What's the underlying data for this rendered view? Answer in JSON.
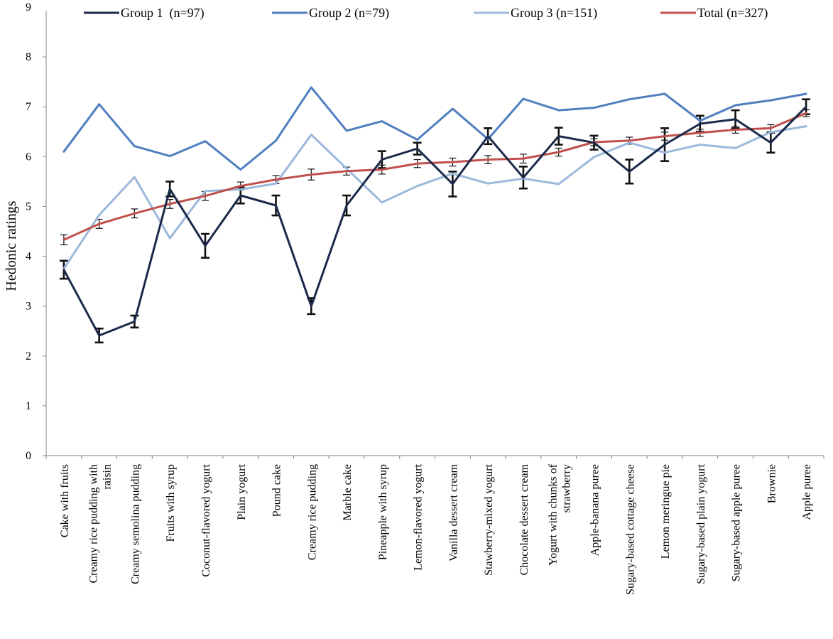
{
  "chart_data": {
    "type": "line",
    "title": "",
    "xlabel": "",
    "ylabel": "Hedonic ratings",
    "ylim": [
      0,
      9
    ],
    "yticks": [
      0,
      1,
      2,
      3,
      4,
      5,
      6,
      7,
      8,
      9
    ],
    "grid": false,
    "legend_position": "top",
    "categories": [
      "Cake with fruits",
      "Creamy rice pudding with raisin",
      "Creamy semolina pudding",
      "Fruits with syrup",
      "Coconut-flavored yogurt",
      "Plain yogurt",
      "Pound cake",
      "Creamy rice pudding",
      "Marble cake",
      "Pineapple with syrup",
      "Lemon-flavored yogurt",
      "Vanilla dessert cream",
      "Stawberry-mixed yogurt",
      "Chocolate dessert cream",
      "Yogurt with chunks of strawberry",
      "Apple-banana puree",
      "Sugary-based cottage cheese",
      "Lemon meringue pie",
      "Sugary-based plain yogurt",
      "Sugary-based apple puree",
      "Brownie",
      "Apple puree"
    ],
    "category_lines": [
      [
        "Cake with fruits"
      ],
      [
        "Creamy rice pudding with",
        "raisin"
      ],
      [
        "Creamy semolina pudding"
      ],
      [
        "Fruits with syrup"
      ],
      [
        "Coconut-flavored yogurt"
      ],
      [
        "Plain yogurt"
      ],
      [
        "Pound cake"
      ],
      [
        "Creamy rice pudding"
      ],
      [
        "Marble cake"
      ],
      [
        "Pineapple with syrup"
      ],
      [
        "Lemon-flavored yogurt"
      ],
      [
        "Vanilla dessert cream"
      ],
      [
        "Stawberry-mixed yogurt"
      ],
      [
        "Chocolate dessert cream"
      ],
      [
        "Yogurt with chunks of",
        "strawberry"
      ],
      [
        "Apple-banana puree"
      ],
      [
        "Sugary-based cottage cheese"
      ],
      [
        "Lemon meringue pie"
      ],
      [
        "Sugary-based plain yogurt"
      ],
      [
        "Sugary-based apple puree"
      ],
      [
        "Brownie"
      ],
      [
        "Apple puree"
      ]
    ],
    "series": [
      {
        "name": "Group 1  (n=97)",
        "color": "#1b2a4a",
        "values": [
          3.73,
          2.41,
          2.69,
          5.35,
          4.21,
          5.22,
          5.02,
          3.0,
          5.02,
          5.94,
          6.16,
          5.45,
          6.41,
          5.58,
          6.41,
          6.28,
          5.7,
          6.24,
          6.66,
          6.75,
          6.28,
          7.0
        ],
        "errors": [
          0.18,
          0.14,
          0.12,
          0.15,
          0.24,
          0.16,
          0.2,
          0.16,
          0.2,
          0.17,
          0.12,
          0.25,
          0.16,
          0.22,
          0.17,
          0.14,
          0.24,
          0.33,
          0.16,
          0.18,
          0.2,
          0.15
        ]
      },
      {
        "name": "Group 2 (n=79)",
        "color": "#4f7fbf",
        "values": [
          6.1,
          7.05,
          6.21,
          6.01,
          6.31,
          5.74,
          6.32,
          7.39,
          6.52,
          6.71,
          6.34,
          6.96,
          6.35,
          7.16,
          6.93,
          6.98,
          7.15,
          7.26,
          6.72,
          7.03,
          7.13,
          7.26
        ]
      },
      {
        "name": "Group 3 (n=151)",
        "color": "#9cb8dc",
        "values": [
          3.75,
          4.83,
          5.59,
          4.36,
          5.31,
          5.34,
          5.46,
          6.44,
          5.76,
          5.08,
          5.41,
          5.66,
          5.46,
          5.56,
          5.45,
          5.99,
          6.28,
          6.08,
          6.24,
          6.17,
          6.49,
          6.61
        ]
      },
      {
        "name": "Total (n=327)",
        "color": "#c0504d",
        "values": [
          4.33,
          4.65,
          4.86,
          5.05,
          5.21,
          5.41,
          5.54,
          5.64,
          5.71,
          5.74,
          5.86,
          5.89,
          5.94,
          5.96,
          6.09,
          6.29,
          6.32,
          6.41,
          6.48,
          6.54,
          6.57,
          6.87
        ],
        "errors": [
          0.1,
          0.09,
          0.09,
          0.09,
          0.09,
          0.08,
          0.08,
          0.11,
          0.08,
          0.09,
          0.08,
          0.08,
          0.08,
          0.09,
          0.08,
          0.07,
          0.07,
          0.08,
          0.07,
          0.07,
          0.07,
          0.07
        ]
      }
    ]
  }
}
